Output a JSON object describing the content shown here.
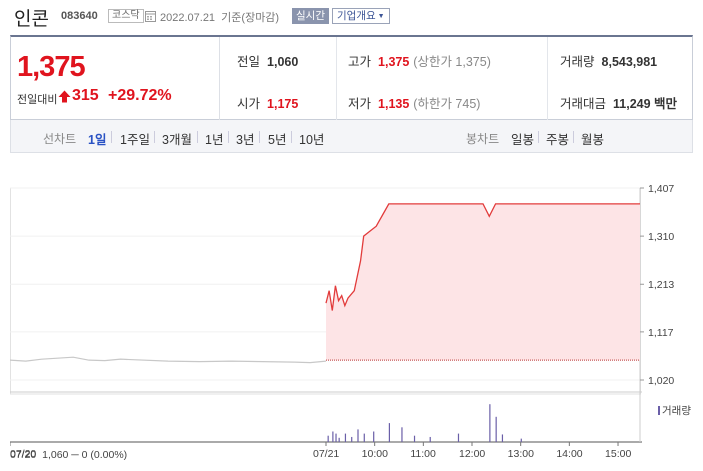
{
  "header": {
    "stock_name": "인콘",
    "stock_code": "083640",
    "market": "코스닥",
    "date_text": "2022.07.21  기준(장마감)",
    "realtime_label": "실시간",
    "corp_overview_label": "기업개요",
    "icons": {
      "calendar": "calendar-icon",
      "dropdown": "chevron-down-icon"
    }
  },
  "summary": {
    "price": "1,375",
    "change_label": "전일대비",
    "change_value": "315",
    "change_pct": "+29.72%",
    "change_direction_icon": "upper-limit-icon",
    "prev_close_label": "전일",
    "prev_close": "1,060",
    "open_label": "시가",
    "open": "1,175",
    "high_label": "고가",
    "high": "1,375",
    "high_sub": "(상한가 1,375)",
    "low_label": "저가",
    "low": "1,135",
    "low_sub": "(하한가 745)",
    "volume_label": "거래량",
    "volume": "8,543,981",
    "amount_label": "거래대금",
    "amount": "11,249 백만"
  },
  "periods": {
    "line_label": "선차트",
    "line_items": [
      "1일",
      "1주일",
      "3개월",
      "1년",
      "3년",
      "5년",
      "10년"
    ],
    "active": "1일",
    "candle_label": "봉차트",
    "candle_items": [
      "일봉",
      "주봉",
      "월봉"
    ]
  },
  "chart": {
    "y_ticks": [
      "1,407",
      "1,310",
      "1,213",
      "1,117",
      "1,020"
    ],
    "x_ticks": [
      "07/20",
      "07/21",
      "10:00",
      "11:00",
      "12:00",
      "13:00",
      "14:00",
      "15:00"
    ],
    "volume_legend": "거래량",
    "footer_prev": "07/20  1,060 ─ 0 (0.00%)",
    "colors": {
      "price_line": "#e23b3b",
      "area_fill": "#fde4e6",
      "prev_day_line": "#c8c8c8",
      "volume": "#6a5fa8",
      "reference_line": "#b33"
    }
  },
  "chart_data": {
    "type": "line",
    "series": [
      {
        "values": [
          [
            0,
            1060
          ],
          [
            0.05,
            1058
          ],
          [
            0.1,
            1062
          ],
          [
            0.2,
            1066
          ],
          [
            0.25,
            1060
          ],
          [
            0.3,
            1059
          ],
          [
            0.35,
            1062
          ],
          [
            0.5,
            1058
          ],
          [
            0.6,
            1057
          ],
          [
            0.7,
            1058
          ],
          [
            0.8,
            1057
          ],
          [
            0.9,
            1056
          ],
          [
            0.95,
            1055
          ],
          [
            1.0,
            1058
          ]
        ]
      },
      {
        "values": [
          [
            1.0,
            1175
          ],
          [
            1.01,
            1200
          ],
          [
            1.02,
            1160
          ],
          [
            1.03,
            1210
          ],
          [
            1.04,
            1180
          ],
          [
            1.05,
            1190
          ],
          [
            1.06,
            1170
          ],
          [
            1.07,
            1185
          ],
          [
            1.09,
            1200
          ],
          [
            1.11,
            1260
          ],
          [
            1.12,
            1310
          ],
          [
            1.14,
            1320
          ],
          [
            1.16,
            1330
          ],
          [
            1.2,
            1375
          ],
          [
            1.5,
            1375
          ],
          [
            1.52,
            1350
          ],
          [
            1.54,
            1375
          ],
          [
            2.0,
            1375
          ]
        ]
      }
    ],
    "reference_value": 1060,
    "ylim": [
      1020,
      1407
    ],
    "yticks": [
      1020,
      1117,
      1213,
      1310,
      1407
    ],
    "xticks": [
      "07/20",
      "07/21",
      "10:00",
      "11:00",
      "12:00",
      "13:00",
      "14:00",
      "15:00"
    ],
    "volume_bars": [
      [
        1.005,
        0.15
      ],
      [
        1.02,
        0.25
      ],
      [
        1.03,
        0.2
      ],
      [
        1.04,
        0.1
      ],
      [
        1.06,
        0.2
      ],
      [
        1.08,
        0.12
      ],
      [
        1.1,
        0.3
      ],
      [
        1.12,
        0.2
      ],
      [
        1.15,
        0.25
      ],
      [
        1.2,
        0.45
      ],
      [
        1.24,
        0.35
      ],
      [
        1.28,
        0.15
      ],
      [
        1.33,
        0.12
      ],
      [
        1.42,
        0.2
      ],
      [
        1.52,
        0.9
      ],
      [
        1.54,
        0.6
      ],
      [
        1.56,
        0.18
      ],
      [
        1.62,
        0.08
      ]
    ]
  }
}
